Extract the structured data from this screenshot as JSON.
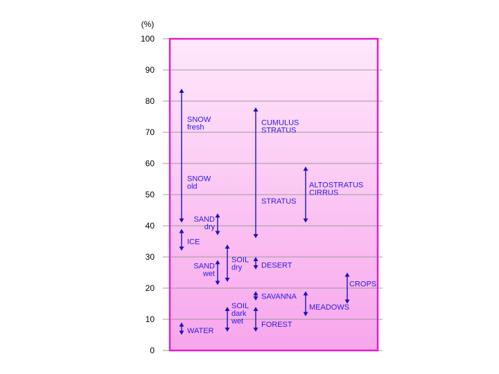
{
  "chart_data": {
    "type": "range",
    "unit_label": "(%)",
    "ylim": [
      0,
      100
    ],
    "ytick_labels": [
      "0",
      "10",
      "20",
      "30",
      "40",
      "50",
      "60",
      "70",
      "80",
      "90",
      "100"
    ],
    "grid": true,
    "colors": {
      "frame": "#e020c8",
      "fill_top": "#ffe8fb",
      "fill_bottom": "#f7a6ec",
      "arrow": "#1a12b8",
      "label": "#2a1adc",
      "grid": "#9a9a9a"
    },
    "ranges": [
      {
        "col": 1,
        "low": 41,
        "high": 84
      },
      {
        "col": 1,
        "low": 32,
        "high": 39
      },
      {
        "col": 1,
        "low": 5,
        "high": 9
      },
      {
        "col": 2,
        "low": 37,
        "high": 44
      },
      {
        "col": 2,
        "low": 21,
        "high": 29
      },
      {
        "col": 3,
        "low": 22,
        "high": 34
      },
      {
        "col": 3,
        "low": 6,
        "high": 14
      },
      {
        "col": 4,
        "low": 36,
        "high": 78
      },
      {
        "col": 4,
        "low": 26,
        "high": 30
      },
      {
        "col": 4,
        "low": 16,
        "high": 19
      },
      {
        "col": 4,
        "low": 6,
        "high": 14
      },
      {
        "col": 5,
        "low": 41,
        "high": 59
      },
      {
        "col": 5,
        "low": 11,
        "high": 19
      },
      {
        "col": 6,
        "low": 15,
        "high": 25
      }
    ],
    "labels": [
      {
        "lines": [
          "SNOW",
          "fresh"
        ],
        "y": 73
      },
      {
        "lines": [
          "SNOW",
          "old"
        ],
        "y": 54
      },
      {
        "lines": [
          "ICE"
        ],
        "y": 35
      },
      {
        "lines": [
          "WATER"
        ],
        "y": 6.5
      },
      {
        "lines": [
          "SAND",
          "dry"
        ],
        "y": 41
      },
      {
        "lines": [
          "SAND",
          "wet"
        ],
        "y": 26
      },
      {
        "lines": [
          "SOIL",
          "dry"
        ],
        "y": 28
      },
      {
        "lines": [
          "SOIL",
          "dark",
          "wet"
        ],
        "y": 12
      },
      {
        "lines": [
          "CUMULUS",
          "STRATUS"
        ],
        "y": 72
      },
      {
        "lines": [
          "STRATUS"
        ],
        "y": 48
      },
      {
        "lines": [
          "DESERT"
        ],
        "y": 27.5
      },
      {
        "lines": [
          "SAVANNA"
        ],
        "y": 17.5
      },
      {
        "lines": [
          "FOREST"
        ],
        "y": 8.5
      },
      {
        "lines": [
          "ALTOSTRATUS",
          "CIRRUS"
        ],
        "y": 52
      },
      {
        "lines": [
          "MEADOWS"
        ],
        "y": 14
      },
      {
        "lines": [
          "CROPS"
        ],
        "y": 21.5
      }
    ]
  }
}
